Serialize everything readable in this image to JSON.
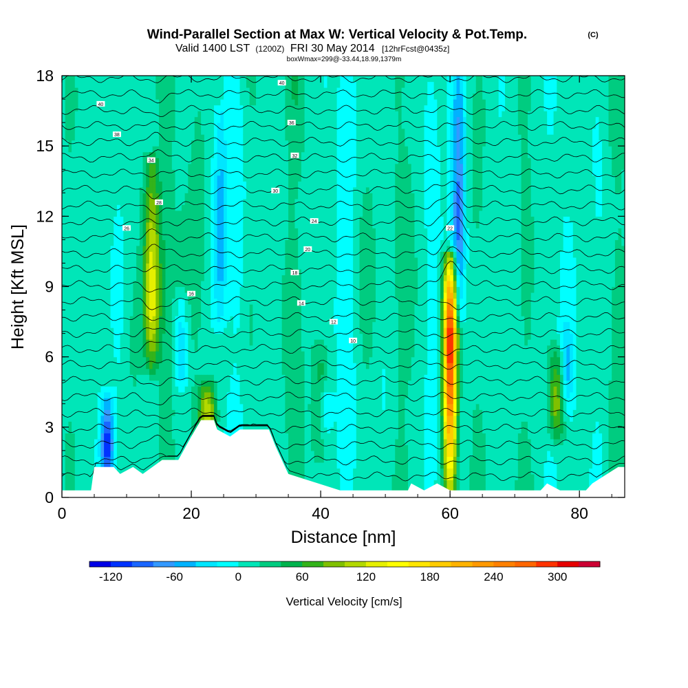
{
  "header": {
    "title": "Wind-Parallel Section at Max W: Vertical Velocity & Pot.Temp.",
    "title_units": "(C)",
    "valid_prefix": "Valid 1400 LST",
    "valid_utc": "(1200Z)",
    "valid_date": "FRI 30 May 2014",
    "forecast": "[12hrFcst@0435z]",
    "box_info": "boxWmax=299@-33.44,18.99,1379m"
  },
  "chart_data": {
    "type": "heatmap",
    "title": "Wind-Parallel Section at Max W: Vertical Velocity & Pot.Temp.",
    "xlabel": "Distance [nm]",
    "ylabel": "Height [Kft MSL]",
    "xlim": [
      0,
      87
    ],
    "ylim": [
      0,
      18
    ],
    "x_ticks": [
      0,
      20,
      40,
      60,
      80
    ],
    "y_ticks": [
      0,
      3,
      6,
      9,
      12,
      15,
      18
    ],
    "colorbar": {
      "label": "Vertical Velocity [cm/s]",
      "ticks": [
        -120,
        -60,
        0,
        60,
        120,
        180,
        240,
        300
      ],
      "levels": [
        -140,
        -120,
        -100,
        -80,
        -60,
        -40,
        -20,
        0,
        20,
        40,
        60,
        80,
        100,
        120,
        140,
        160,
        180,
        200,
        220,
        240,
        260,
        280,
        300,
        320,
        340
      ],
      "colors": [
        "#0000e6",
        "#0033ff",
        "#1a66ff",
        "#3399ff",
        "#00b3ff",
        "#00e6ff",
        "#00ffff",
        "#00e6b8",
        "#00cc80",
        "#00b34d",
        "#33b31a",
        "#80c000",
        "#b3d900",
        "#e6f000",
        "#ffff00",
        "#ffe600",
        "#ffcc00",
        "#ffb300",
        "#ff9900",
        "#ff8000",
        "#ff6600",
        "#ff3300",
        "#e60000",
        "#cc0033"
      ]
    },
    "background_value": 10,
    "updraft_cores": [
      {
        "x": 60.0,
        "z0": 0.8,
        "z1": 9.8,
        "peak_z": 6.8,
        "peak": 299
      },
      {
        "x": 13.9,
        "z0": 6.0,
        "z1": 14.0,
        "peak_z": 8.5,
        "peak": 120
      },
      {
        "x": 22.5,
        "z0": 3.0,
        "z1": 4.5,
        "peak_z": 3.5,
        "peak": 110
      },
      {
        "x": 76.5,
        "z0": 3.0,
        "z1": 6.0,
        "peak_z": 4.0,
        "peak": 90
      },
      {
        "x": 40.0,
        "z0": 2.0,
        "z1": 6.0,
        "peak_z": 4.0,
        "peak": 50
      }
    ],
    "downdraft_cores": [
      {
        "x": 7.0,
        "z0": 1.0,
        "z1": 3.8,
        "peak_z": 2.2,
        "peak": -120
      },
      {
        "x": 18.5,
        "z0": 5.0,
        "z1": 8.0,
        "peak_z": 6.0,
        "peak": -60
      },
      {
        "x": 24.5,
        "z0": 8.0,
        "z1": 16.0,
        "peak_z": 11.0,
        "peak": -60
      },
      {
        "x": 61.3,
        "z0": 8.0,
        "z1": 18.0,
        "peak_z": 11.5,
        "peak": -90
      },
      {
        "x": 78.0,
        "z0": 4.0,
        "z1": 7.0,
        "peak_z": 5.5,
        "peak": -60
      },
      {
        "x": 40.6,
        "z0": 3.0,
        "z1": 4.5,
        "peak_z": 3.8,
        "peak": -50
      }
    ],
    "terrain_profile": [
      [
        0,
        0.3
      ],
      [
        4.5,
        0.3
      ],
      [
        5,
        1.3
      ],
      [
        8,
        1.3
      ],
      [
        9,
        1.0
      ],
      [
        11,
        1.3
      ],
      [
        12.5,
        1.0
      ],
      [
        14,
        1.3
      ],
      [
        15.5,
        1.6
      ],
      [
        18,
        1.6
      ],
      [
        20,
        2.6
      ],
      [
        21.5,
        3.3
      ],
      [
        23.5,
        3.3
      ],
      [
        24,
        2.9
      ],
      [
        26,
        2.6
      ],
      [
        27.5,
        2.9
      ],
      [
        32,
        2.9
      ],
      [
        33,
        2.2
      ],
      [
        34,
        1.6
      ],
      [
        35,
        1.0
      ],
      [
        43,
        0.3
      ],
      [
        53.5,
        0.3
      ],
      [
        54,
        0.6
      ],
      [
        56,
        0.3
      ],
      [
        58,
        0.6
      ],
      [
        60,
        0.3
      ],
      [
        74,
        0.3
      ],
      [
        75,
        0.6
      ],
      [
        77,
        0.3
      ],
      [
        81,
        0.3
      ],
      [
        82,
        0.6
      ],
      [
        86,
        1.3
      ],
      [
        87,
        1.3
      ]
    ],
    "theta_contours": {
      "interval": 2,
      "count": 26,
      "labels": [
        "40",
        "40",
        "38",
        "36",
        "34",
        "32",
        "30",
        "28",
        "26",
        "24",
        "22",
        "20",
        "18",
        "16",
        "14",
        "12",
        "10"
      ]
    }
  }
}
